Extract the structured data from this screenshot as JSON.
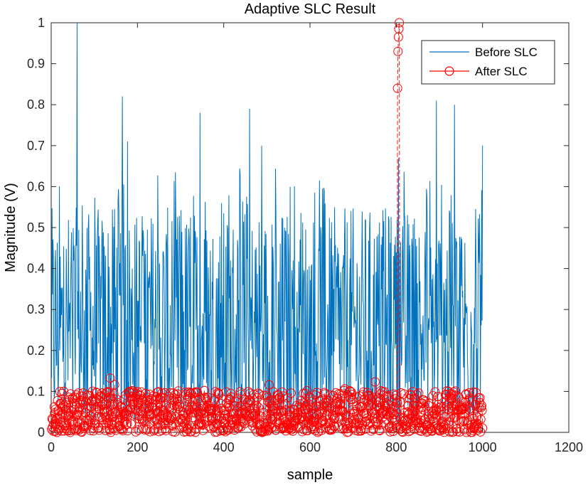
{
  "chart_data": {
    "type": "line",
    "title": "Adaptive SLC Result",
    "xlabel": "sample",
    "ylabel": "Magnitude (V)",
    "xlim": [
      0,
      1200
    ],
    "ylim": [
      0,
      1
    ],
    "xticks": [
      "0",
      "200",
      "400",
      "600",
      "800",
      "1000",
      "1200"
    ],
    "yticks": [
      "0",
      "0.1",
      "0.2",
      "0.3",
      "0.4",
      "0.5",
      "0.6",
      "0.7",
      "0.8",
      "0.9",
      "1"
    ],
    "grid": false,
    "legend_position": "top-right",
    "series": [
      {
        "name": "Before SLC",
        "color": "#0072BD",
        "style": "solid line",
        "n_samples": 1000,
        "typical_range": [
          0.02,
          0.55
        ],
        "peaks": [
          {
            "x": 60,
            "y": 1.0
          },
          {
            "x": 165,
            "y": 0.82
          },
          {
            "x": 177,
            "y": 0.71
          },
          {
            "x": 345,
            "y": 0.78
          },
          {
            "x": 460,
            "y": 0.79
          },
          {
            "x": 488,
            "y": 0.7
          },
          {
            "x": 805,
            "y": 0.67
          },
          {
            "x": 893,
            "y": 0.81
          },
          {
            "x": 935,
            "y": 0.8
          },
          {
            "x": 1000,
            "y": 0.7
          }
        ]
      },
      {
        "name": "After SLC",
        "color": "#FF0000",
        "style": "dashed line with circle markers",
        "n_samples": 1000,
        "typical_range": [
          0.0,
          0.12
        ],
        "peak_x": 805,
        "peak_values": [
          0.84,
          0.93,
          0.965,
          0.985,
          1.0
        ]
      }
    ]
  }
}
